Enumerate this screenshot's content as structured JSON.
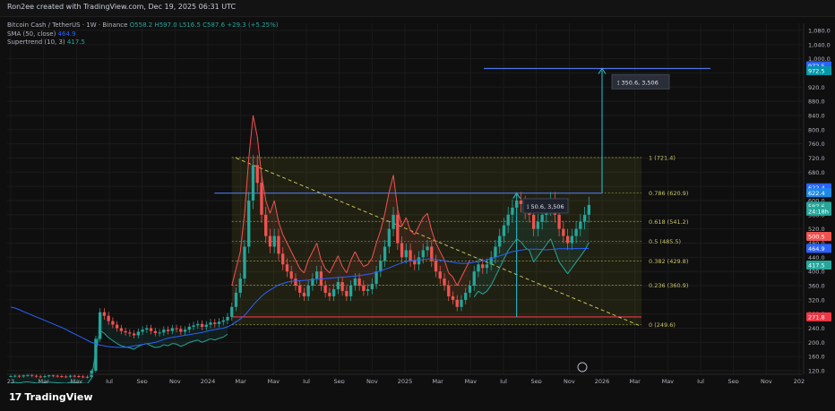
{
  "header": {
    "credit": "Ron2ee created with TradingView.com, Dec 19, 2025 06:31 UTC"
  },
  "legend": {
    "symbol": "Bitcoin Cash / TetherUS · 1W · Binance",
    "ohlc": "O558.2 H597.0 L516.5 C587.6 +29.3 (+5.25%)",
    "sma_label": "SMA (50, close)",
    "sma_value": "464.9",
    "st_label": "Supertrend (10, 3)",
    "st_value": "417.5"
  },
  "brand": {
    "logo": "17",
    "name": "TradingView"
  },
  "colors": {
    "up": "#26a69a",
    "down": "#ef5350",
    "sma": "#2962ff",
    "fib": "#d6d15a",
    "target": "#4f73e6",
    "support": "#f23645"
  },
  "chart_data": {
    "type": "candlestick",
    "symbol": "BCH/USDT",
    "timeframe": "1W",
    "x_ticks": [
      "23",
      "Mar",
      "May",
      "Jul",
      "Sep",
      "Nov",
      "2024",
      "Mar",
      "May",
      "Jul",
      "Sep",
      "Nov",
      "2025",
      "Mar",
      "May",
      "Jul",
      "Sep",
      "Nov",
      "2026",
      "Mar",
      "May",
      "Jul",
      "Sep",
      "Nov",
      "202"
    ],
    "y_ticks": [
      120,
      160,
      200,
      240,
      280,
      320,
      360,
      400,
      440,
      480,
      520,
      560,
      600,
      640,
      680,
      720,
      760,
      800,
      840,
      880,
      920,
      960,
      1000,
      1040,
      1080
    ],
    "y_tick_labels": [
      "120.0",
      "160.0",
      "200.0",
      "240.0",
      "280.0",
      "320.0",
      "360.0",
      "400.0",
      "440.0",
      "480.0",
      "520.0",
      "560.0",
      "600.0",
      "640.0",
      "680.0",
      "720.0",
      "760.0",
      "800.0",
      "840.0",
      "880.0",
      "920.0",
      "960.0",
      "1,000.0",
      "1,040.0",
      "1,080.0"
    ],
    "ylim": [
      110,
      1100
    ],
    "fib_levels": [
      {
        "ratio": 1,
        "price": 721.4,
        "label": "1 (721.4)"
      },
      {
        "ratio": 0.786,
        "price": 620.9,
        "label": "0.786 (620.9)"
      },
      {
        "ratio": 0.618,
        "price": 541.2,
        "label": "0.618 (541.2)"
      },
      {
        "ratio": 0.5,
        "price": 485.5,
        "label": "0.5 (485.5)"
      },
      {
        "ratio": 0.382,
        "price": 429.8,
        "label": "0.382 (429.8)"
      },
      {
        "ratio": 0.236,
        "price": 360.9,
        "label": "0.236 (360.9)"
      },
      {
        "ratio": 0,
        "price": 249.6,
        "label": "0 (249.6)"
      }
    ],
    "resistance": 621.0,
    "support": 271.8,
    "target": 972.5,
    "measure_labels": [
      "350.6, 3,506",
      "50.6, 3,506"
    ],
    "price_badges": [
      {
        "value": "972.5",
        "color": "#2962ff",
        "price": 980
      },
      {
        "value": "972.5",
        "color": "#0097a7",
        "price": 966
      },
      {
        "value": "622.4",
        "color": "#2962ff",
        "price": 636
      },
      {
        "value": "622.4",
        "color": "#1e88e5",
        "price": 622
      },
      {
        "value": "587.6",
        "color": "#26a69a",
        "price": 584
      },
      {
        "value": "24:18h",
        "color": "#26a69a",
        "price": 570
      },
      {
        "value": "500.5",
        "color": "#ef5350",
        "price": 499
      },
      {
        "value": "464.9",
        "color": "#2962ff",
        "price": 465
      },
      {
        "value": "417.5",
        "color": "#26a69a",
        "price": 418
      },
      {
        "value": "271.8",
        "color": "#f23645",
        "price": 271.8
      }
    ],
    "close_series": [
      105,
      106,
      104,
      107,
      108,
      106,
      104,
      103,
      105,
      107,
      106,
      105,
      104,
      103,
      106,
      105,
      104,
      103,
      102,
      120,
      210,
      285,
      275,
      260,
      250,
      240,
      232,
      228,
      225,
      220,
      230,
      236,
      240,
      232,
      226,
      228,
      236,
      232,
      240,
      238,
      230,
      236,
      244,
      248,
      252,
      244,
      250,
      256,
      252,
      258,
      262,
      272,
      300,
      340,
      380,
      470,
      600,
      700,
      650,
      560,
      500,
      470,
      500,
      450,
      420,
      400,
      380,
      360,
      340,
      330,
      360,
      380,
      400,
      360,
      340,
      330,
      350,
      370,
      345,
      330,
      360,
      380,
      360,
      345,
      350,
      365,
      400,
      430,
      470,
      520,
      560,
      480,
      440,
      460,
      430,
      420,
      440,
      460,
      470,
      430,
      400,
      380,
      360,
      330,
      320,
      300,
      320,
      340,
      360,
      400,
      420,
      410,
      420,
      440,
      470,
      500,
      530,
      560,
      580,
      600,
      590,
      570,
      560,
      520,
      540,
      560,
      580,
      600,
      560,
      520,
      500,
      480,
      500,
      520,
      540,
      560,
      587.6
    ],
    "sma_series": [
      300,
      297,
      292,
      287,
      282,
      277,
      272,
      267,
      262,
      257,
      252,
      247,
      242,
      236,
      230,
      224,
      218,
      212,
      206,
      200,
      196,
      192,
      190,
      188,
      187,
      186,
      186,
      186,
      188,
      190,
      192,
      194,
      196,
      198,
      200,
      204,
      208,
      212,
      214,
      216,
      218,
      220,
      222,
      224,
      226,
      228,
      231,
      234,
      236,
      238,
      240,
      244,
      250,
      258,
      266,
      276,
      290,
      305,
      318,
      330,
      340,
      348,
      355,
      362,
      366,
      370,
      372,
      373,
      374,
      375,
      376,
      377,
      378,
      379,
      380,
      381,
      382,
      383,
      384,
      385,
      386,
      387,
      388,
      390,
      392,
      394,
      398,
      402,
      406,
      410,
      415,
      420,
      424,
      428,
      430,
      432,
      433,
      434,
      435,
      435,
      434,
      432,
      430,
      428,
      426,
      424,
      423,
      423,
      424,
      426,
      428,
      430,
      433,
      436,
      440,
      444,
      448,
      452,
      456,
      458,
      460,
      462,
      463,
      463,
      463,
      462,
      461,
      462,
      463,
      464,
      464,
      464,
      464,
      464.5,
      464.7,
      464.9,
      464.9
    ]
  }
}
